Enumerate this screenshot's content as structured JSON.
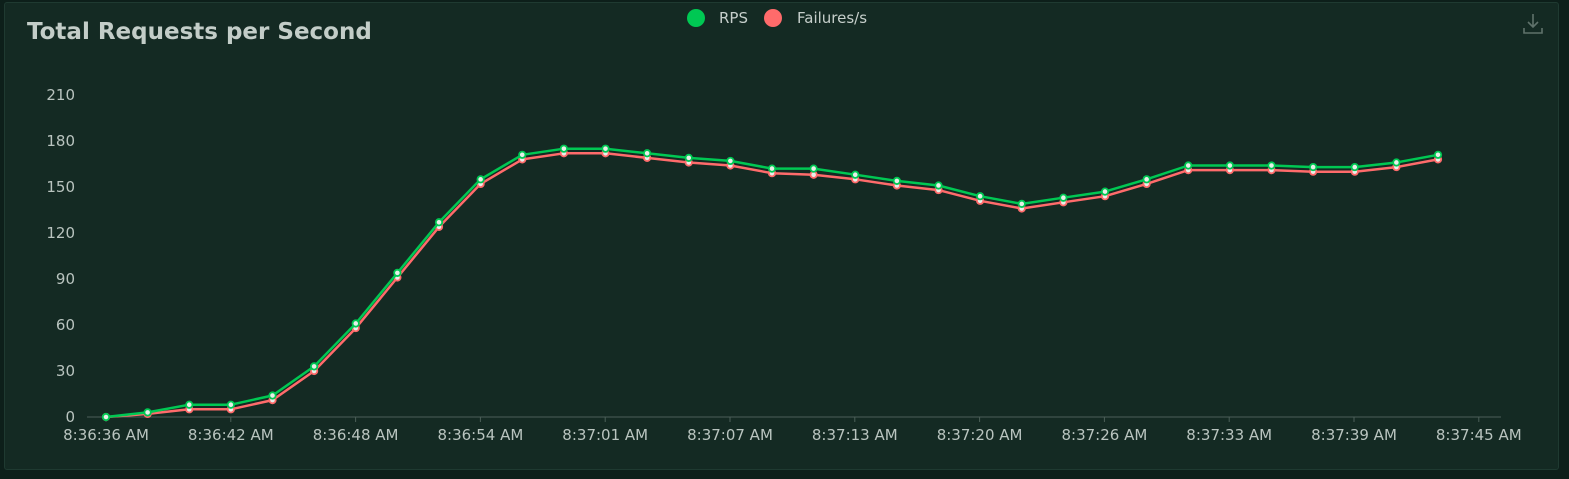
{
  "panel": {
    "title": "Total Requests per Second",
    "download_icon": "download-icon"
  },
  "colors": {
    "rps": "#00c853",
    "failures": "#ff6b6b",
    "background": "#142a23",
    "axis": "#4b5f58",
    "text": "#b9c4bf"
  },
  "chart_data": {
    "type": "line",
    "title": "Total Requests per Second",
    "xlabel": "",
    "ylabel": "",
    "ylim": [
      0,
      210
    ],
    "yticks": [
      0,
      30,
      60,
      90,
      120,
      150,
      180,
      210
    ],
    "grid": false,
    "legend_position": "top-center",
    "x_tick_labels": [
      "8:36:36 AM",
      "8:36:42 AM",
      "8:36:48 AM",
      "8:36:54 AM",
      "8:37:01 AM",
      "8:37:07 AM",
      "8:37:13 AM",
      "8:37:20 AM",
      "8:37:26 AM",
      "8:37:33 AM",
      "8:37:39 AM",
      "8:37:45 AM"
    ],
    "series": [
      {
        "name": "RPS",
        "values": [
          0,
          3,
          8,
          8,
          14,
          33,
          61,
          94,
          127,
          155,
          171,
          175,
          175,
          172,
          169,
          167,
          162,
          162,
          158,
          154,
          151,
          144,
          139,
          143,
          147,
          155,
          164,
          164,
          164,
          163,
          163,
          166,
          171
        ]
      },
      {
        "name": "Failures/s",
        "values": [
          0,
          2,
          5,
          5,
          11,
          30,
          58,
          91,
          124,
          152,
          168,
          172,
          172,
          169,
          166,
          164,
          159,
          158,
          155,
          151,
          148,
          141,
          136,
          140,
          144,
          152,
          161,
          161,
          161,
          160,
          160,
          163,
          168
        ]
      }
    ]
  }
}
